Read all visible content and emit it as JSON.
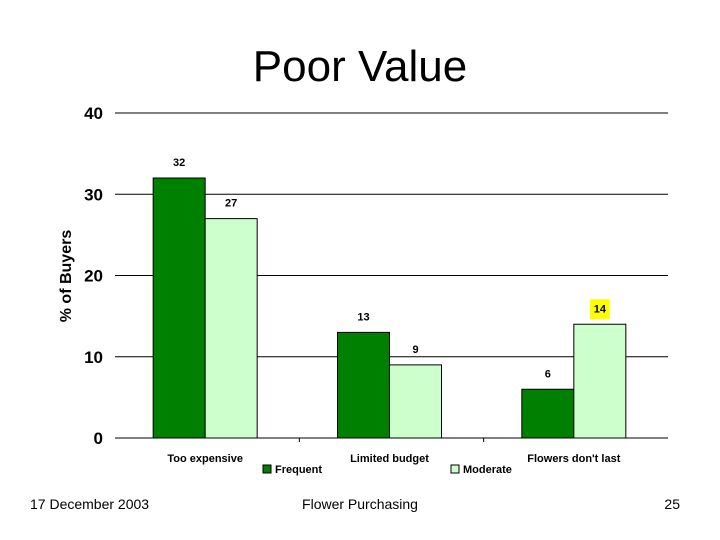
{
  "slide": {
    "title": "Poor Value",
    "footer_date": "17 December 2003",
    "footer_center": "Flower Purchasing",
    "page_number": "25"
  },
  "chart_data": {
    "type": "bar",
    "categories": [
      "Too expensive",
      "Limited budget",
      "Flowers don't last"
    ],
    "series": [
      {
        "name": "Frequent",
        "values": [
          32,
          13,
          6
        ],
        "color": "#008000"
      },
      {
        "name": "Moderate",
        "values": [
          27,
          9,
          14
        ],
        "color": "#ccffcc"
      }
    ],
    "ylabel": "% of Buyers",
    "xlabel": "",
    "ylim": [
      0,
      40
    ],
    "yticks": [
      0,
      10,
      20,
      30,
      40
    ],
    "grid": true,
    "legend_position": "bottom",
    "highlight": {
      "series": 1,
      "category": 2,
      "color": "#ffff00"
    }
  }
}
